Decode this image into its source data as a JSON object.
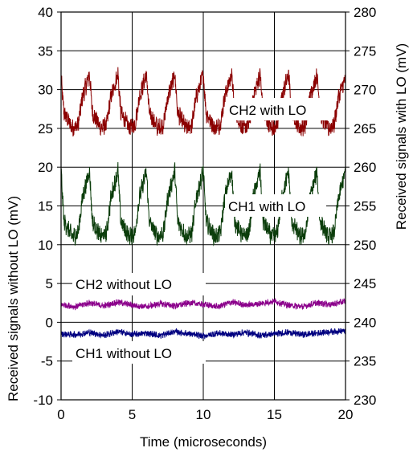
{
  "chart_data": {
    "type": "line",
    "title": "",
    "xlabel": "Time (microseconds)",
    "ylabel": "Received signals without LO (mV)",
    "ylabel_right": "Received signals with LO (mV)",
    "xlim": [
      0,
      20
    ],
    "ylim": [
      -10,
      40
    ],
    "ylim_right": [
      230,
      280
    ],
    "x_ticks": [
      "0",
      "5",
      "10",
      "15",
      "20"
    ],
    "y_ticks": [
      "40",
      "35",
      "30",
      "25",
      "20",
      "15",
      "10",
      "5",
      "0",
      "-5",
      "-10"
    ],
    "y_ticks_right": [
      "280",
      "275",
      "270",
      "265",
      "260",
      "255",
      "250",
      "245",
      "240",
      "235",
      "230"
    ],
    "grid": true,
    "series": [
      {
        "name": "CH2 with LO",
        "axis": "right",
        "color": "#8b0000",
        "approx_shape": "periodic sawtooth",
        "period": 2.0,
        "low": 265,
        "high": 272,
        "x": [
          0,
          0.2,
          0.8,
          1.2,
          1.5,
          2.0,
          2.2,
          2.8,
          3.2,
          3.5,
          4.0,
          4.2,
          4.8,
          5.2,
          5.5,
          6.0,
          6.2,
          6.8,
          7.2,
          7.5,
          8.0,
          8.2,
          8.8,
          9.2,
          9.5,
          10.0,
          10.2,
          10.8,
          11.2,
          11.5,
          12.0,
          12.2,
          12.8,
          13.2,
          13.5,
          14.0,
          14.2,
          14.8,
          15.2,
          15.5,
          16.0,
          16.2,
          16.8,
          17.2,
          17.5,
          18.0,
          18.2,
          18.8,
          19.2,
          19.5,
          20.0
        ],
        "values": [
          271.5,
          267.0,
          265.0,
          265.5,
          269.0,
          272.0,
          267.0,
          265.0,
          265.5,
          269.0,
          272.0,
          267.0,
          265.0,
          265.5,
          269.0,
          272.0,
          267.0,
          265.0,
          265.5,
          269.0,
          272.0,
          267.0,
          265.0,
          265.5,
          269.0,
          272.0,
          267.0,
          265.0,
          265.5,
          269.0,
          272.0,
          267.0,
          265.0,
          265.5,
          269.0,
          272.0,
          267.0,
          265.0,
          265.5,
          269.0,
          272.0,
          267.0,
          265.0,
          265.5,
          269.0,
          272.0,
          267.0,
          265.0,
          265.5,
          269.0,
          271.5
        ]
      },
      {
        "name": "CH1 with LO",
        "axis": "right",
        "color": "#0b3d0b",
        "approx_shape": "periodic sawtooth",
        "period": 2.0,
        "low": 251,
        "high": 259,
        "x": [
          0,
          0.2,
          0.8,
          1.2,
          1.5,
          2.0,
          2.2,
          2.8,
          3.2,
          3.5,
          4.0,
          4.2,
          4.8,
          5.2,
          5.5,
          6.0,
          6.2,
          6.8,
          7.2,
          7.5,
          8.0,
          8.2,
          8.8,
          9.2,
          9.5,
          10.0,
          10.2,
          10.8,
          11.2,
          11.5,
          12.0,
          12.2,
          12.8,
          13.2,
          13.5,
          14.0,
          14.2,
          14.8,
          15.2,
          15.5,
          16.0,
          16.2,
          16.8,
          17.2,
          17.5,
          18.0,
          18.2,
          18.8,
          19.2,
          19.5,
          20.0
        ],
        "values": [
          259.5,
          253.0,
          251.0,
          251.5,
          256.0,
          259.5,
          253.0,
          251.0,
          251.5,
          256.0,
          259.5,
          253.0,
          251.0,
          251.5,
          256.0,
          259.5,
          253.0,
          251.0,
          251.5,
          256.0,
          259.5,
          253.0,
          251.0,
          251.5,
          256.0,
          259.5,
          253.0,
          251.0,
          251.5,
          256.0,
          259.5,
          253.0,
          251.0,
          251.5,
          256.0,
          259.5,
          253.0,
          251.0,
          251.5,
          256.0,
          259.5,
          253.0,
          251.0,
          251.5,
          256.0,
          259.5,
          253.0,
          251.0,
          251.5,
          256.0,
          259.5
        ]
      },
      {
        "name": "CH2 without LO",
        "axis": "left",
        "color": "#8b008b",
        "approx_shape": "flat noisy",
        "x": [
          0,
          1,
          2,
          3,
          4,
          5,
          6,
          7,
          8,
          9,
          10,
          11,
          12,
          13,
          14,
          15,
          16,
          17,
          18,
          19,
          20
        ],
        "values": [
          2.3,
          2.0,
          2.5,
          2.1,
          2.6,
          2.2,
          2.0,
          2.4,
          2.1,
          2.5,
          2.3,
          2.0,
          2.6,
          2.2,
          2.4,
          2.7,
          2.2,
          2.0,
          2.5,
          2.3,
          2.7
        ]
      },
      {
        "name": "CH1 without LO",
        "axis": "left",
        "color": "#000080",
        "approx_shape": "flat noisy",
        "x": [
          0,
          1,
          2,
          3,
          4,
          5,
          6,
          7,
          8,
          9,
          10,
          11,
          12,
          13,
          14,
          15,
          16,
          17,
          18,
          19,
          20
        ],
        "values": [
          -1.5,
          -1.6,
          -1.3,
          -1.7,
          -1.2,
          -1.6,
          -1.4,
          -1.7,
          -1.2,
          -1.5,
          -1.8,
          -1.4,
          -1.6,
          -1.3,
          -1.7,
          -1.5,
          -1.3,
          -1.6,
          -1.4,
          -1.2,
          -1.1
        ]
      }
    ]
  }
}
